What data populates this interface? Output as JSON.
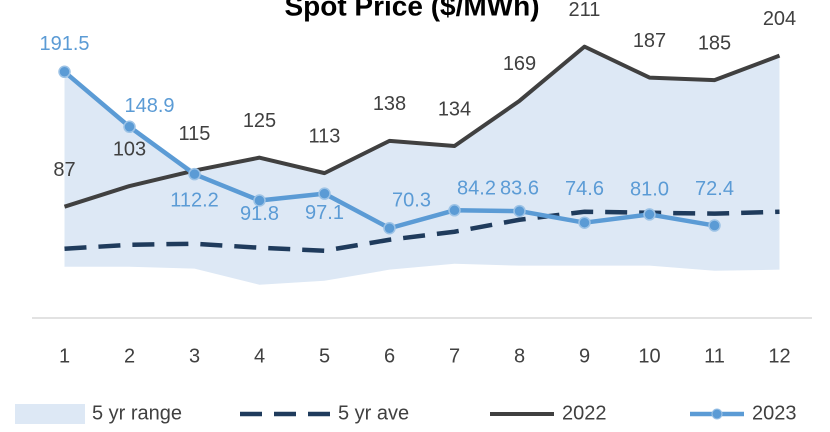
{
  "chart_data": {
    "type": "line",
    "title": "Spot Price ($/MWh)",
    "x": [
      1,
      2,
      3,
      4,
      5,
      6,
      7,
      8,
      9,
      10,
      11,
      12
    ],
    "xlim": [
      0.5,
      12.5
    ],
    "ylim": [
      0,
      220
    ],
    "series": [
      {
        "name": "5 yr range",
        "color": "#dde8f5",
        "type": "range",
        "low": [
          40.5,
          40.5,
          39,
          26.5,
          29.6,
          38.2,
          42.8,
          41.3,
          41.3,
          41.3,
          37.4,
          38.2
        ],
        "high": [
          191.5,
          148.9,
          115,
          125,
          113,
          138,
          134,
          169,
          211,
          187,
          185,
          204
        ]
      },
      {
        "name": "5 yr ave",
        "color": "#1f3b5c",
        "type": "dashed",
        "values": [
          54.4,
          57.5,
          58.3,
          55.2,
          52.9,
          61.4,
          67.6,
          76.9,
          83.1,
          82.3,
          81.6,
          83.1
        ]
      },
      {
        "name": "2022",
        "color": "#404040",
        "type": "line",
        "values": [
          87,
          103,
          115,
          125,
          113,
          138,
          134,
          169,
          211,
          187,
          185,
          204
        ]
      },
      {
        "name": "2023",
        "color": "#5b9bd5",
        "type": "marker-line",
        "values": [
          191.5,
          148.9,
          112.2,
          91.8,
          97.1,
          70.3,
          84.2,
          83.6,
          74.6,
          81.0,
          72.4,
          null
        ],
        "value_labels": [
          "191.5",
          "148.9",
          "112.2",
          "91.8",
          "97.1",
          "70.3",
          "84.2",
          "83.6",
          "74.6",
          "81.0",
          "72.4",
          null
        ]
      }
    ]
  }
}
